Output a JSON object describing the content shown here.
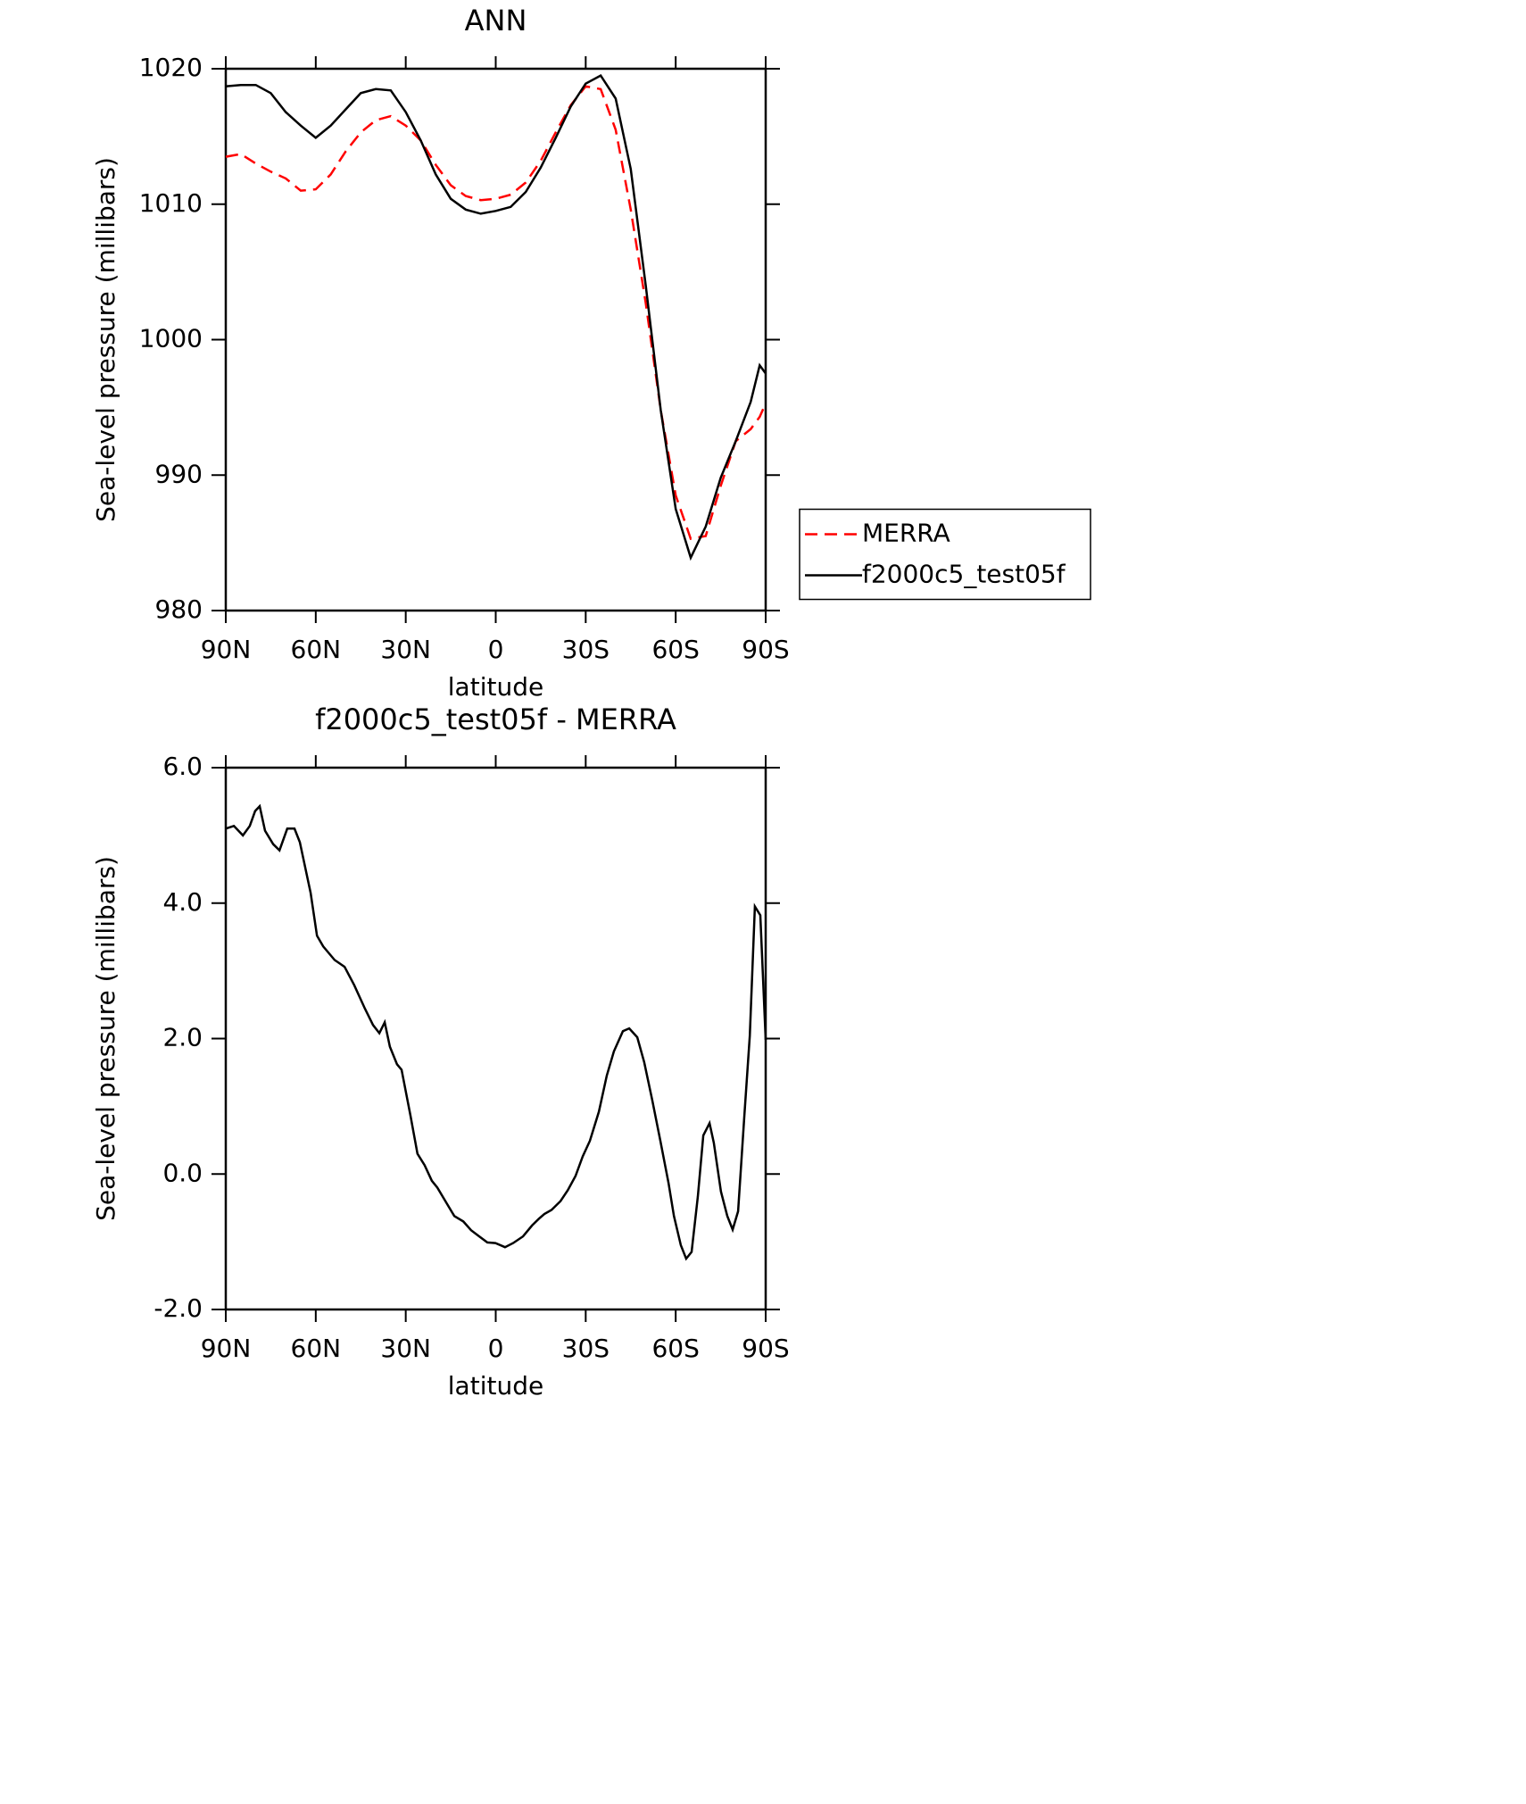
{
  "chart_data": [
    {
      "type": "line",
      "title": "ANN",
      "xlabel": "latitude",
      "ylabel": "Sea-level pressure (millibars)",
      "x": [
        90,
        85,
        80,
        75,
        70,
        65,
        60,
        55,
        50,
        45,
        40,
        35,
        30,
        25,
        20,
        15,
        10,
        5,
        0,
        -5,
        -10,
        -15,
        -20,
        -25,
        -30,
        -35,
        -40,
        -45,
        -50,
        -55,
        -60,
        -65,
        -70,
        -75,
        -80,
        -85,
        -88,
        -90
      ],
      "series": [
        {
          "name": "MERRA",
          "color": "#ff0000",
          "dash": true,
          "values": [
            1013.5,
            1013.7,
            1013.0,
            1012.4,
            1011.9,
            1011.0,
            1011.1,
            1012.2,
            1013.9,
            1015.3,
            1016.2,
            1016.5,
            1015.8,
            1014.7,
            1012.9,
            1011.4,
            1010.6,
            1010.3,
            1010.4,
            1010.7,
            1011.6,
            1013.2,
            1015.3,
            1017.3,
            1018.7,
            1018.5,
            1015.5,
            1009.6,
            1002.7,
            994.8,
            988.5,
            985.3,
            985.5,
            989.2,
            992.5,
            993.4,
            994.3,
            995.3
          ]
        },
        {
          "name": "f2000c5_test05f",
          "color": "#000000",
          "dash": false,
          "values": [
            1018.7,
            1018.8,
            1018.8,
            1018.2,
            1016.8,
            1015.8,
            1014.9,
            1015.8,
            1017.0,
            1018.2,
            1018.5,
            1018.4,
            1016.8,
            1014.7,
            1012.2,
            1010.4,
            1009.6,
            1009.3,
            1009.5,
            1009.8,
            1010.9,
            1012.7,
            1014.9,
            1017.2,
            1018.9,
            1019.5,
            1017.8,
            1012.6,
            1004.0,
            994.8,
            987.5,
            983.9,
            986.2,
            989.8,
            992.5,
            995.4,
            998.1,
            997.5
          ]
        }
      ],
      "legend": "right",
      "xlim": [
        90,
        -90
      ],
      "xticks": [
        {
          "value": 90,
          "label": "90N"
        },
        {
          "value": 60,
          "label": "60N"
        },
        {
          "value": 30,
          "label": "30N"
        },
        0,
        {
          "value": -30,
          "label": "30S"
        },
        {
          "value": -60,
          "label": "60S"
        },
        {
          "value": -90,
          "label": "90S"
        }
      ],
      "ylim": [
        980,
        1020
      ],
      "yticks": [
        980,
        990,
        1000,
        1010,
        1020
      ]
    },
    {
      "type": "line",
      "title": "f2000c5_test05f - MERRA",
      "xlabel": "latitude",
      "ylabel": "Sea-level pressure (millibars)",
      "x": [
        90,
        87.3,
        84.3,
        82.0,
        80.2,
        78.7,
        76.9,
        74.2,
        72.1,
        69.5,
        67.1,
        65.3,
        61.7,
        59.6,
        57.5,
        53.7,
        50.4,
        47.2,
        43.6,
        40.9,
        38.8,
        37.0,
        35.3,
        32.9,
        31.4,
        28.4,
        26.1,
        23.7,
        21.3,
        19.5,
        16.5,
        13.8,
        10.8,
        8.2,
        5.5,
        2.8,
        0.1,
        -3.1,
        -5.8,
        -9.1,
        -12.1,
        -14.4,
        -16.2,
        -18.6,
        -21.6,
        -24.0,
        -26.6,
        -29.0,
        -31.4,
        -34.4,
        -37.0,
        -39.4,
        -42.4,
        -44.5,
        -47.2,
        -49.5,
        -52.2,
        -54.9,
        -57.6,
        -59.4,
        -61.7,
        -63.5,
        -65.3,
        -67.4,
        -69.2,
        -71.3,
        -72.7,
        -75.1,
        -77.2,
        -79.0,
        -80.8,
        -82.9,
        -84.7,
        -86.4,
        -88.2,
        -90
      ],
      "values": [
        5.1,
        5.14,
        5.0,
        5.14,
        5.36,
        5.43,
        5.07,
        4.87,
        4.78,
        5.1,
        5.1,
        4.9,
        4.15,
        3.52,
        3.36,
        3.16,
        3.06,
        2.79,
        2.44,
        2.2,
        2.08,
        2.24,
        1.88,
        1.62,
        1.54,
        0.86,
        0.3,
        0.13,
        -0.1,
        -0.2,
        -0.42,
        -0.62,
        -0.7,
        -0.83,
        -0.92,
        -1.01,
        -1.02,
        -1.08,
        -1.02,
        -0.92,
        -0.76,
        -0.66,
        -0.59,
        -0.53,
        -0.4,
        -0.24,
        -0.03,
        0.26,
        0.49,
        0.92,
        1.45,
        1.81,
        2.11,
        2.15,
        2.02,
        1.65,
        1.09,
        0.49,
        -0.13,
        -0.62,
        -1.05,
        -1.25,
        -1.15,
        -0.33,
        0.57,
        0.75,
        0.46,
        -0.26,
        -0.62,
        -0.82,
        -0.55,
        0.86,
        2.04,
        3.95,
        3.82,
        1.98
      ],
      "color": "#000000",
      "xlim": [
        90,
        -90
      ],
      "xticks": [
        {
          "value": 90,
          "label": "90N"
        },
        {
          "value": 60,
          "label": "60N"
        },
        {
          "value": 30,
          "label": "30N"
        },
        0,
        {
          "value": -30,
          "label": "30S"
        },
        {
          "value": -60,
          "label": "60S"
        },
        {
          "value": -90,
          "label": "90S"
        }
      ],
      "ylim": [
        -2,
        6
      ],
      "yticks": [
        {
          "value": -2,
          "label": "-2.0"
        },
        {
          "value": 0,
          "label": "0.0"
        },
        {
          "value": 2,
          "label": "2.0"
        },
        {
          "value": 4,
          "label": "4.0"
        },
        {
          "value": 6,
          "label": "6.0"
        }
      ]
    }
  ]
}
